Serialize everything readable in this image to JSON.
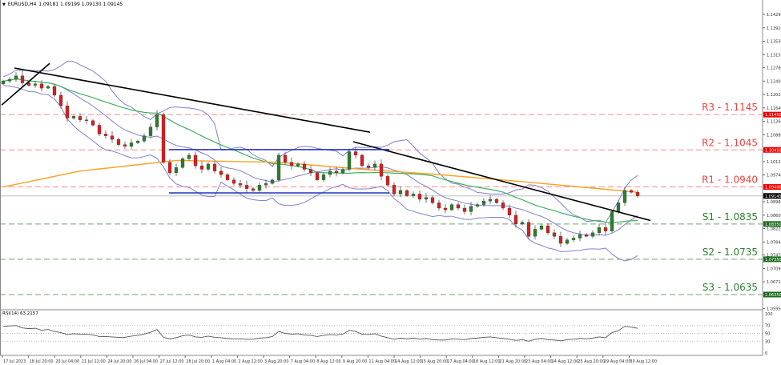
{
  "header": {
    "symbol": "EURUSD,H4",
    "ohlc": "1.09181 1.09199 1.09130 1.09145"
  },
  "rsi_label": "RSI(14) 63.2157",
  "colors": {
    "bull": "#2b7d2b",
    "bear": "#d42020",
    "resistance": "#f04040",
    "support": "#2e7d2e",
    "bands": "#8080d0",
    "ma_fast": "#40b060",
    "ma_slow": "#ffa020",
    "trendline": "#000000",
    "range": "#2030c0",
    "current": "#c8ccd0"
  },
  "chart_data": {
    "type": "candlestick",
    "title": "",
    "ylim": [
      1.0595,
      1.1429
    ],
    "y_ticks": [
      "1.14290",
      "1.13910",
      "1.13530",
      "1.13150",
      "1.12780",
      "1.12400",
      "1.12020",
      "1.11640",
      "1.11260",
      "1.10880",
      "1.10120",
      "1.09740",
      "1.08980",
      "1.08600",
      "1.08220",
      "1.07840",
      "1.07470",
      "1.07090",
      "1.06710",
      "1.05950"
    ],
    "x_ticks": [
      "17 Jul 2023",
      "18 Jul 20:00",
      "20 Jul 04:00",
      "21 Jul 12:00",
      "24 Jul 20:00",
      "26 Jul 04:00",
      "27 Jul 12:00",
      "28 Jul 20:00",
      "1 Aug 04:00",
      "2 Aug 12:00",
      "3 Aug 20:00",
      "7 Aug 04:00",
      "8 Aug 12:00",
      "9 Aug 20:00",
      "11 Aug 04:00",
      "14 Aug 12:00",
      "15 Aug 20:00",
      "17 Aug 04:00",
      "18 Aug 12:00",
      "21 Aug 20:00",
      "23 Aug 04:00",
      "24 Aug 12:00",
      "25 Aug 20:00",
      "29 Aug 04:00",
      "30 Aug 12:00"
    ],
    "open_first": 1.1232,
    "closes": [
      1.124,
      1.1245,
      1.1255,
      1.1235,
      1.1228,
      1.1232,
      1.122,
      1.1225,
      1.12,
      1.117,
      1.1135,
      1.114,
      1.113,
      1.1128,
      1.1115,
      1.109,
      1.1085,
      1.1075,
      1.106,
      1.1055,
      1.1065,
      1.107,
      1.1085,
      1.111,
      1.1145,
      1.101,
      1.098,
      1.0995,
      1.102,
      1.103,
      1.1,
      1.099,
      1.1005,
      1.0985,
      1.0975,
      1.096,
      1.095,
      1.0945,
      1.0935,
      1.093,
      1.0945,
      1.095,
      1.096,
      1.103,
      1.101,
      1.1,
      1.1005,
      1.099,
      1.098,
      1.096,
      1.0975,
      1.0985,
      1.098,
      1.099,
      1.104,
      1.103,
      1.1,
      1.0995,
      1.1005,
      1.097,
      1.0945,
      1.092,
      1.093,
      1.0915,
      1.092,
      1.0905,
      1.091,
      1.0895,
      1.088,
      1.0875,
      1.089,
      1.088,
      1.087,
      1.0885,
      1.089,
      1.09,
      1.0905,
      1.0895,
      1.088,
      1.086,
      1.0835,
      1.084,
      1.08,
      1.082,
      1.083,
      1.081,
      1.08,
      1.078,
      1.079,
      1.0795,
      1.0805,
      1.08,
      1.081,
      1.0825,
      1.0815,
      1.087,
      1.0895,
      1.093,
      1.0925,
      1.09145
    ],
    "current_price": "1.09145",
    "ma_slow": [
      [
        0,
        1.094
      ],
      [
        12,
        1.0985
      ],
      [
        27,
        1.1015
      ],
      [
        43,
        1.101
      ],
      [
        56,
        1.099
      ],
      [
        68,
        1.0975
      ],
      [
        81,
        1.0955
      ],
      [
        99,
        1.0925
      ]
    ],
    "levels": [
      {
        "label": "R3 - 1.1145",
        "price": 1.1145,
        "tag": "1.11450",
        "kind": "resistance"
      },
      {
        "label": "R2 - 1.1045",
        "price": 1.1045,
        "tag": "1.10450",
        "kind": "resistance"
      },
      {
        "label": "R1 - 1.0940",
        "price": 1.094,
        "tag": "1.09400",
        "kind": "resistance"
      },
      {
        "label": "S1 - 1.0835",
        "price": 1.0835,
        "tag": "1.08350",
        "kind": "support"
      },
      {
        "label": "S2 - 1.0735",
        "price": 1.0735,
        "tag": "1.07350",
        "kind": "support"
      },
      {
        "label": "S3 - 1.0635",
        "price": 1.0635,
        "tag": "1.06350",
        "kind": "support"
      }
    ],
    "trendlines": [
      {
        "from": [
          "17 Jul 2023",
          1.1277
        ],
        "to": [
          "11 Aug 04:00",
          1.1095
        ]
      },
      {
        "from": [
          "9 Aug 20:00",
          1.1068
        ],
        "to": [
          "30 Aug 12:00",
          1.0845
        ]
      },
      {
        "from": [
          "17 Jul 2023",
          1.1172
        ],
        "to": [
          "18 Jul 20:00",
          1.129
        ]
      }
    ],
    "range_lines": [
      1.1046,
      1.0923
    ],
    "rsi": {
      "ylim": [
        0,
        100
      ],
      "ticks": [
        "100",
        "70",
        "50",
        "30",
        "0"
      ],
      "values": [
        68,
        69,
        70,
        64,
        62,
        63,
        58,
        60,
        55,
        52,
        47,
        49,
        48,
        48,
        46,
        42,
        42,
        41,
        40,
        40,
        43,
        45,
        48,
        53,
        60,
        40,
        36,
        39,
        44,
        46,
        41,
        40,
        43,
        40,
        39,
        37,
        36,
        36,
        35,
        35,
        38,
        39,
        42,
        55,
        50,
        48,
        49,
        46,
        45,
        42,
        45,
        47,
        46,
        48,
        58,
        55,
        48,
        47,
        49,
        43,
        39,
        35,
        38,
        36,
        38,
        35,
        37,
        34,
        33,
        33,
        36,
        35,
        34,
        37,
        38,
        40,
        41,
        39,
        37,
        35,
        32,
        34,
        30,
        35,
        37,
        34,
        33,
        31,
        34,
        35,
        37,
        36,
        38,
        41,
        39,
        52,
        57,
        68,
        66,
        63
      ]
    }
  }
}
